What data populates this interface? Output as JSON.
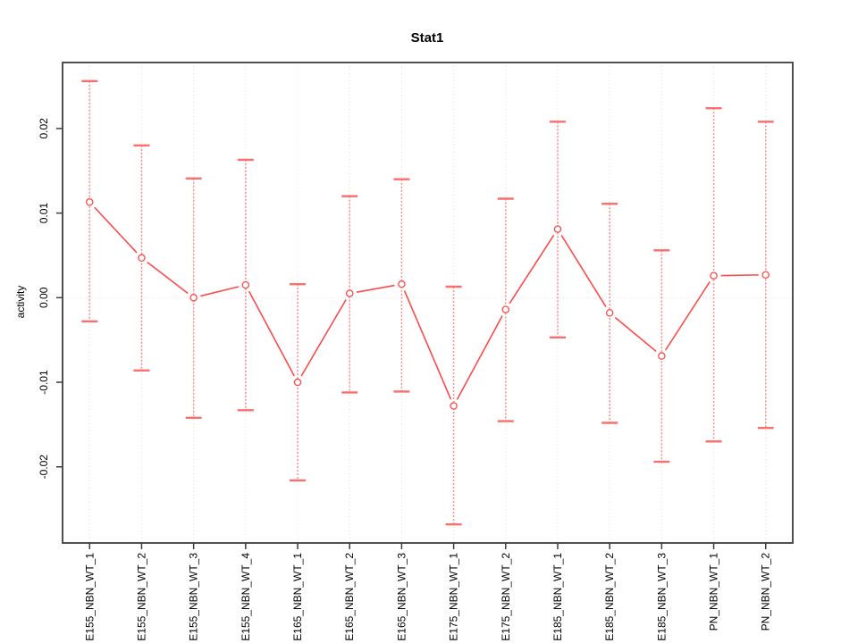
{
  "window": {
    "background": "#ffffff"
  },
  "chart_data": {
    "type": "line",
    "title": "Stat1",
    "xlabel": "",
    "ylabel": "activity",
    "categories": [
      "E155_NBN_WT_1",
      "E155_NBN_WT_2",
      "E155_NBN_WT_3",
      "E155_NBN_WT_4",
      "E165_NBN_WT_1",
      "E165_NBN_WT_2",
      "E165_NBN_WT_3",
      "E175_NBN_WT_1",
      "E175_NBN_WT_2",
      "E185_NBN_WT_1",
      "E185_NBN_WT_2",
      "E185_NBN_WT_3",
      "PN_NBN_WT_1",
      "PN_NBN_WT_2"
    ],
    "x": [
      1,
      2,
      3,
      4,
      5,
      6,
      7,
      8,
      9,
      10,
      11,
      12,
      13,
      14
    ],
    "series": [
      {
        "name": "activity",
        "marker": "open-circle",
        "values": [
          0.0113,
          0.0047,
          0.0,
          0.0015,
          -0.01,
          0.0005,
          0.0016,
          -0.0128,
          -0.0014,
          0.0081,
          -0.0018,
          -0.0069,
          0.0026,
          0.0027
        ],
        "upper": [
          0.0256,
          0.018,
          0.0141,
          0.0163,
          0.0016,
          0.012,
          0.014,
          0.0013,
          0.0117,
          0.0208,
          0.0111,
          0.0056,
          0.0224,
          0.0208
        ],
        "lower": [
          -0.0028,
          -0.0086,
          -0.0142,
          -0.0133,
          -0.0216,
          -0.0112,
          -0.0111,
          -0.0268,
          -0.0146,
          -0.0047,
          -0.0148,
          -0.0194,
          -0.017,
          -0.0154
        ]
      }
    ],
    "yticks": [
      -0.02,
      -0.01,
      0,
      0.01,
      0.02
    ],
    "ytick_labels": [
      "-0.02",
      "-0.01",
      "0.00",
      "0.01",
      "0.02"
    ],
    "xlim": [
      0.48,
      14.52
    ],
    "ylim": [
      -0.029,
      0.0278
    ],
    "grid": {
      "vertical": "one dotted line per category",
      "horizontal_at": 0
    },
    "legend": null,
    "colors": {
      "series_line": "#fa4b4b",
      "marker_stroke": "#fa4b4b",
      "marker_fill": "#ffffff",
      "error_line": "#fb9595",
      "error_cap": "#fa6e6e",
      "gridline": "#dcdcdc",
      "zero_line": "#e0e0e0",
      "axis_box": "#3d3d3d",
      "text": "#000000"
    }
  }
}
